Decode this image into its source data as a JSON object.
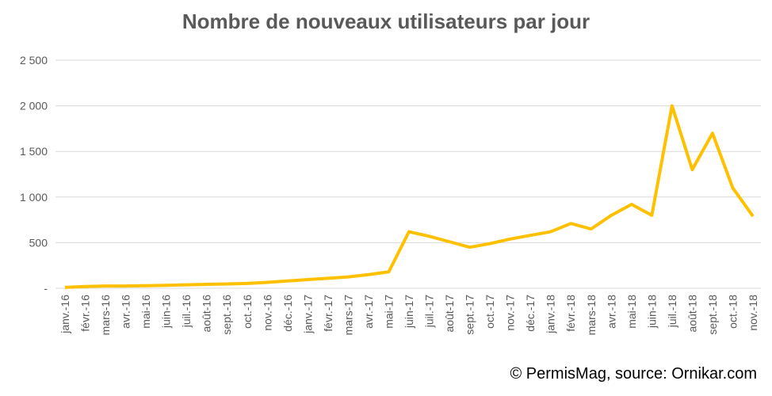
{
  "chart_data": {
    "type": "line",
    "title": "Nombre de nouveaux utilisateurs par jour",
    "categories": [
      "janv.-16",
      "févr.-16",
      "mars-16",
      "avr.-16",
      "mai-16",
      "juin-16",
      "juil.-16",
      "août-16",
      "sept.-16",
      "oct.-16",
      "nov.-16",
      "déc.-16",
      "janv.-17",
      "févr.-17",
      "mars-17",
      "avr.-17",
      "mai-17",
      "juin-17",
      "juil.-17",
      "août-17",
      "sept.-17",
      "oct.-17",
      "nov.-17",
      "déc.-17",
      "janv.-18",
      "févr.-18",
      "mars-18",
      "avr.-18",
      "mai-18",
      "juin-18",
      "juil.-18",
      "août-18",
      "sept.-18",
      "oct.-18",
      "nov.-18"
    ],
    "series": [
      {
        "name": "Nouveaux utilisateurs",
        "color": "#FFC000",
        "values": [
          10,
          20,
          25,
          25,
          28,
          33,
          38,
          43,
          48,
          53,
          65,
          80,
          95,
          110,
          125,
          150,
          180,
          620,
          570,
          510,
          450,
          490,
          540,
          580,
          620,
          710,
          650,
          800,
          920,
          800,
          2000,
          1300,
          1700,
          1100,
          790
        ]
      }
    ],
    "ylim": [
      0,
      2500
    ],
    "yticks": [
      {
        "value": 0,
        "label": "-"
      },
      500,
      {
        "value": 1000,
        "label": "1 000"
      },
      {
        "value": 1500,
        "label": "1 500"
      },
      {
        "value": 2000,
        "label": "2 000"
      },
      {
        "value": 2500,
        "label": "2 500"
      }
    ],
    "grid": true,
    "source": "© PermisMag, source: Ornikar.com"
  }
}
